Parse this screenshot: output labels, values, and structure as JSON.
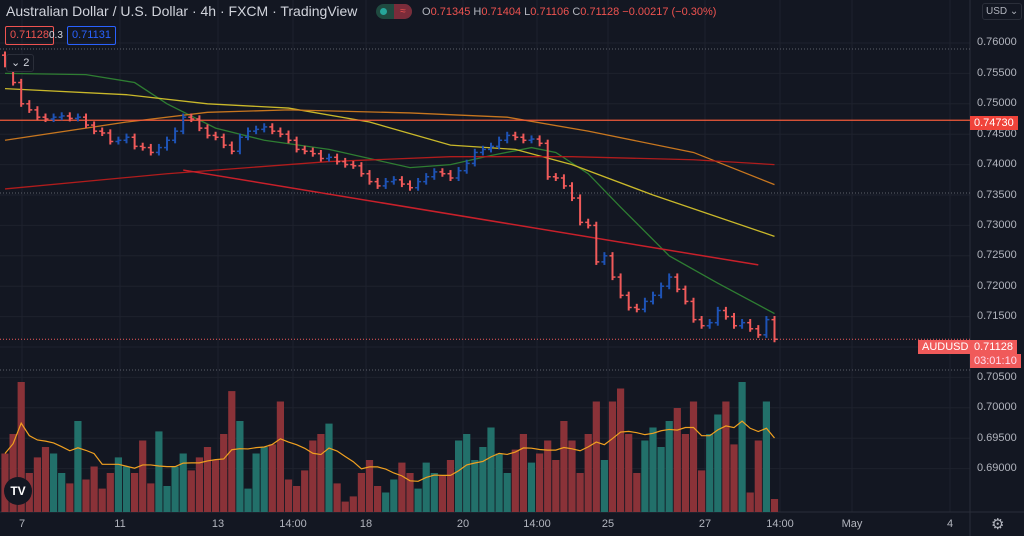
{
  "header": {
    "title": "Australian Dollar / U.S. Dollar · 4h · FXCM · TradingView",
    "ohlc": {
      "o_label": "O",
      "o": "0.71345",
      "h_label": "H",
      "h": "0.71404",
      "l_label": "L",
      "l": "0.71106",
      "c_label": "C",
      "c": "0.71128",
      "change": "−0.00217 (−0.30%)"
    },
    "toggle_icon": "≈"
  },
  "trade": {
    "sell": "0.71128",
    "spread": "0.3",
    "buy": "0.71131"
  },
  "collapse": {
    "label": "⌄ 2"
  },
  "currency": "USD ⌄",
  "colors": {
    "up": "#1e53b5",
    "down": "#f05a5a",
    "vol_up": "#22706a",
    "vol_down": "#8a3238",
    "bg": "#131722"
  },
  "price_axis": [
    "0.76000",
    "0.75500",
    "0.75000",
    "0.74500",
    "0.74000",
    "0.73500",
    "0.73000",
    "0.72500",
    "0.72000",
    "0.71500",
    "0.70500",
    "0.70000",
    "0.69500",
    "0.69000"
  ],
  "tags": {
    "level": "0.74730",
    "symbol": "AUDUSD",
    "last": "0.71128",
    "countdown": "03:01:10"
  },
  "time_axis": [
    "7",
    "11",
    "13",
    "14:00",
    "18",
    "20",
    "14:00",
    "25",
    "27",
    "14:00",
    "May",
    "4"
  ],
  "chart_data": {
    "type": "ohlc",
    "symbol": "AUDUSD",
    "interval": "4h",
    "ylim": [
      0.6865,
      0.7635
    ],
    "close": [
      0.7565,
      0.7535,
      0.75,
      0.749,
      0.7478,
      0.7475,
      0.7478,
      0.748,
      0.7476,
      0.7478,
      0.7465,
      0.7455,
      0.7452,
      0.7438,
      0.744,
      0.7445,
      0.743,
      0.7428,
      0.742,
      0.7428,
      0.744,
      0.7455,
      0.7478,
      0.7475,
      0.746,
      0.7448,
      0.7445,
      0.7432,
      0.7422,
      0.7445,
      0.7455,
      0.7458,
      0.7462,
      0.7455,
      0.745,
      0.744,
      0.7425,
      0.7422,
      0.7418,
      0.741,
      0.7412,
      0.7405,
      0.74,
      0.7398,
      0.7385,
      0.7372,
      0.7365,
      0.7372,
      0.7375,
      0.7368,
      0.7362,
      0.7372,
      0.738,
      0.7388,
      0.7385,
      0.7378,
      0.739,
      0.7402,
      0.742,
      0.7425,
      0.743,
      0.744,
      0.7448,
      0.7445,
      0.744,
      0.7442,
      0.7435,
      0.738,
      0.7378,
      0.7365,
      0.7345,
      0.7305,
      0.73,
      0.724,
      0.725,
      0.7215,
      0.7185,
      0.7165,
      0.7162,
      0.7175,
      0.7185,
      0.72,
      0.7215,
      0.7195,
      0.7175,
      0.7145,
      0.7135,
      0.714,
      0.716,
      0.715,
      0.7135,
      0.714,
      0.713,
      0.712,
      0.7145,
      0.71128
    ],
    "volume": [
      45,
      60,
      100,
      30,
      42,
      50,
      45,
      30,
      22,
      70,
      25,
      35,
      18,
      30,
      42,
      35,
      30,
      55,
      22,
      62,
      20,
      35,
      45,
      32,
      42,
      50,
      40,
      60,
      93,
      70,
      18,
      45,
      50,
      52,
      85,
      25,
      20,
      32,
      55,
      60,
      68,
      22,
      8,
      12,
      30,
      40,
      20,
      15,
      25,
      38,
      30,
      18,
      38,
      30,
      28,
      40,
      55,
      60,
      40,
      50,
      65,
      45,
      30,
      48,
      60,
      38,
      45,
      55,
      40,
      70,
      55,
      30,
      60,
      85,
      40,
      85,
      95,
      60,
      30,
      55,
      65,
      50,
      70,
      80,
      60,
      85,
      32,
      60,
      75,
      85,
      52,
      100,
      15,
      55,
      85,
      10
    ],
    "moving_averages": [
      {
        "color": "#2e7d32",
        "points": [
          [
            0,
            0.755
          ],
          [
            10,
            0.7548
          ],
          [
            16,
            0.7535
          ],
          [
            20,
            0.75
          ],
          [
            26,
            0.746
          ],
          [
            32,
            0.744
          ],
          [
            40,
            0.7425
          ],
          [
            45,
            0.741
          ],
          [
            50,
            0.7395
          ],
          [
            55,
            0.74
          ],
          [
            60,
            0.7415
          ],
          [
            65,
            0.7428
          ],
          [
            68,
            0.742
          ],
          [
            72,
            0.7385
          ],
          [
            76,
            0.733
          ],
          [
            82,
            0.725
          ],
          [
            88,
            0.7205
          ],
          [
            95,
            0.7155
          ]
        ]
      },
      {
        "color": "#c9b82a",
        "points": [
          [
            0,
            0.7525
          ],
          [
            15,
            0.7515
          ],
          [
            25,
            0.75
          ],
          [
            35,
            0.7493
          ],
          [
            45,
            0.747
          ],
          [
            55,
            0.7432
          ],
          [
            63,
            0.7425
          ],
          [
            70,
            0.74
          ],
          [
            80,
            0.735
          ],
          [
            95,
            0.7282
          ]
        ]
      },
      {
        "color": "#c7761f",
        "points": [
          [
            0,
            0.744
          ],
          [
            15,
            0.747
          ],
          [
            25,
            0.7486
          ],
          [
            35,
            0.749
          ],
          [
            50,
            0.7485
          ],
          [
            62,
            0.7478
          ],
          [
            72,
            0.7455
          ],
          [
            85,
            0.742
          ],
          [
            95,
            0.7367
          ]
        ]
      },
      {
        "color": "#b01c1c",
        "points": [
          [
            0,
            0.736
          ],
          [
            20,
            0.7385
          ],
          [
            40,
            0.7405
          ],
          [
            55,
            0.7413
          ],
          [
            70,
            0.7413
          ],
          [
            85,
            0.7408
          ],
          [
            95,
            0.74
          ]
        ]
      }
    ],
    "trendline": {
      "color": "#c8202a",
      "from": [
        22,
        0.7391
      ],
      "to": [
        93,
        0.7235
      ]
    },
    "horizontal_level": {
      "price": 0.7473,
      "color": "#f05a3a"
    },
    "volume_ma_color": "#f0a020"
  }
}
